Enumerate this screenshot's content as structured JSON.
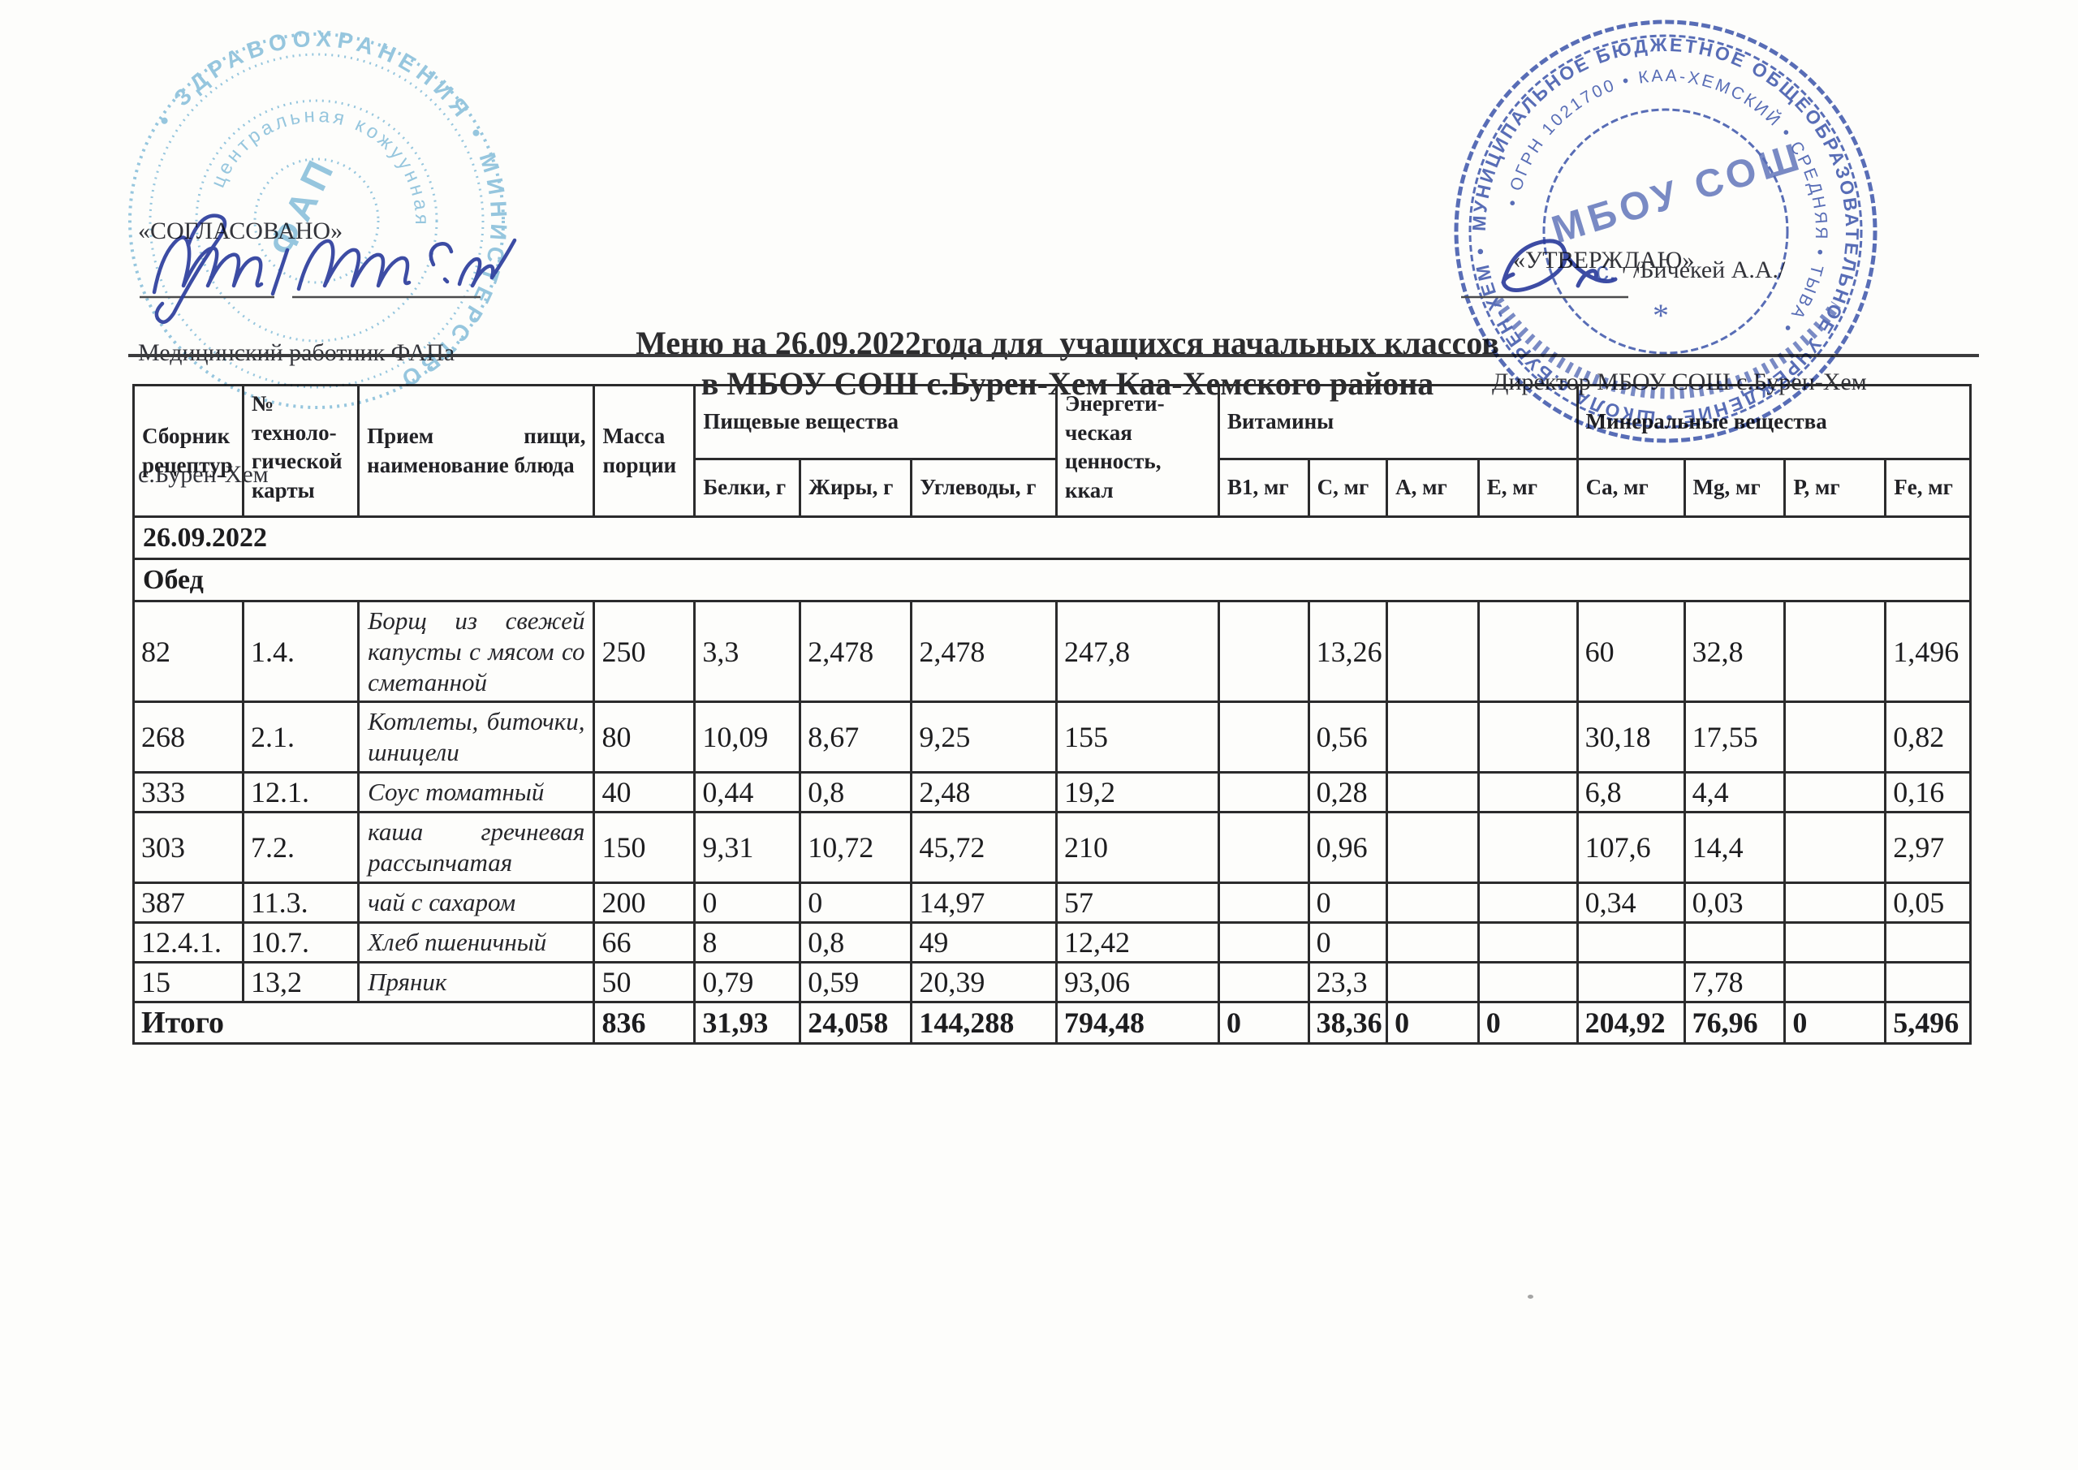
{
  "approval_left": {
    "quote": "«СОГЛАСОВАНО»",
    "role": "Медицинский работник ФАПа",
    "place": "с.Бурен-Хем"
  },
  "approval_right": {
    "quote": "«УТВЕРЖДАЮ»",
    "role": "Директор МБОУ СОШ с.Бурен-Хем",
    "name": "/Бичекей А.А./"
  },
  "title": {
    "line1": "Меню на 26.09.2022года для  учащихся начальных классов",
    "line2": "в МБОУ СОШ с.Бурен-Хем Каа-Хемского района"
  },
  "stamps": {
    "left": {
      "ring": "• ЗДРАВООХРАНЕНИЯ • МИНИСТЕРСТВО",
      "ring2": "центральная кожуунная",
      "center": "ФАП",
      "color": "#58a7d0"
    },
    "right": {
      "ring": "МУНИЦИПАЛЬНОЕ БЮДЖЕТНОЕ ОБЩЕОБРАЗОВАТЕЛЬНОЕ УЧРЕЖДЕНИЕ • ШКОЛА с.БУРЕН-ХЕМ •",
      "ring2": "• ОГРН 1021700 • КАА-ХЕМСКИЙ • СРЕДНЯЯ • ТЫВА •",
      "center1": "МБОУ СОШ",
      "center2": "с.",
      "star": "*",
      "color": "#3c55ad"
    }
  },
  "table": {
    "columns_order": [
      "recipe",
      "card",
      "dish",
      "mass",
      "protein",
      "fat",
      "carbs",
      "energy",
      "b1",
      "c",
      "a",
      "e",
      "ca",
      "mg",
      "p",
      "fe"
    ],
    "header": {
      "recipe": "Сборник рецептур",
      "card": "№\nтехноло-\nгической\nкарты",
      "dish": "Прием пищи, наименование блюда",
      "mass": "Масса порции",
      "nutrients_group": "Пищевые вещества",
      "protein": "Белки, г",
      "fat": "Жиры, г",
      "carbs": "Углеводы, г",
      "energy": "Энергети-\nческая\nценность,\nккал",
      "vitamins_group": "Витамины",
      "b1": "В1, мг",
      "c": "С, мг",
      "a": "А, мг",
      "e": "Е, мг",
      "minerals_group": "Минеральные вещества",
      "ca": "Са, мг",
      "mg": "Mg, мг",
      "p": "Р, мг",
      "fe": "Fe, мг"
    },
    "rows": [
      {
        "type": "section",
        "label": "26.09.2022"
      },
      {
        "type": "section",
        "label": "Обед"
      },
      {
        "type": "dish",
        "recipe": "82",
        "card": "1.4.",
        "dish": "Борщ из свежей капусты с мясом со сметанной",
        "mass": "250",
        "protein": "3,3",
        "fat": "2,478",
        "carbs": "2,478",
        "energy": "247,8",
        "b1": "",
        "c": "13,26",
        "a": "",
        "e": "",
        "ca": "60",
        "mg": "32,8",
        "p": "",
        "fe": "1,496"
      },
      {
        "type": "dish",
        "recipe": "268",
        "card": "2.1.",
        "dish": "Котлеты, биточки, шницели",
        "mass": "80",
        "protein": "10,09",
        "fat": "8,67",
        "carbs": "9,25",
        "energy": "155",
        "b1": "",
        "c": "0,56",
        "a": "",
        "e": "",
        "ca": "30,18",
        "mg": "17,55",
        "p": "",
        "fe": "0,82"
      },
      {
        "type": "dish",
        "recipe": "333",
        "card": "12.1.",
        "dish": "Соус томатный",
        "mass": "40",
        "protein": "0,44",
        "fat": "0,8",
        "carbs": "2,48",
        "energy": "19,2",
        "b1": "",
        "c": "0,28",
        "a": "",
        "e": "",
        "ca": "6,8",
        "mg": "4,4",
        "p": "",
        "fe": "0,16"
      },
      {
        "type": "dish",
        "recipe": "303",
        "card": "7.2.",
        "dish": "каша гречневая рассыпчатая",
        "mass": "150",
        "protein": "9,31",
        "fat": "10,72",
        "carbs": "45,72",
        "energy": "210",
        "b1": "",
        "c": "0,96",
        "a": "",
        "e": "",
        "ca": "107,6",
        "mg": "14,4",
        "p": "",
        "fe": "2,97"
      },
      {
        "type": "dish",
        "recipe": "387",
        "card": "11.3.",
        "dish": "чай с сахаром",
        "mass": "200",
        "protein": "0",
        "fat": "0",
        "carbs": "14,97",
        "energy": "57",
        "b1": "",
        "c": "0",
        "a": "",
        "e": "",
        "ca": "0,34",
        "mg": "0,03",
        "p": "",
        "fe": "0,05"
      },
      {
        "type": "dish",
        "recipe": "12.4.1.",
        "card": "10.7.",
        "dish": "Хлеб пшеничный",
        "mass": "66",
        "protein": "8",
        "fat": "0,8",
        "carbs": "49",
        "energy": "12,42",
        "b1": "",
        "c": "0",
        "a": "",
        "e": "",
        "ca": "",
        "mg": "",
        "p": "",
        "fe": ""
      },
      {
        "type": "dish",
        "recipe": "15",
        "card": "13,2",
        "dish": "Пряник",
        "mass": "50",
        "protein": "0,79",
        "fat": "0,59",
        "carbs": "20,39",
        "energy": "93,06",
        "b1": "",
        "c": "23,3",
        "a": "",
        "e": "",
        "ca": "",
        "mg": "7,78",
        "p": "",
        "fe": ""
      },
      {
        "type": "total",
        "label": "Итого",
        "mass": "836",
        "protein": "31,93",
        "fat": "24,058",
        "carbs": "144,288",
        "energy": "794,48",
        "b1": "0",
        "c": "38,36",
        "a": "0",
        "e": "0",
        "ca": "204,92",
        "mg": "76,96",
        "p": "0",
        "fe": "5,496"
      }
    ]
  }
}
